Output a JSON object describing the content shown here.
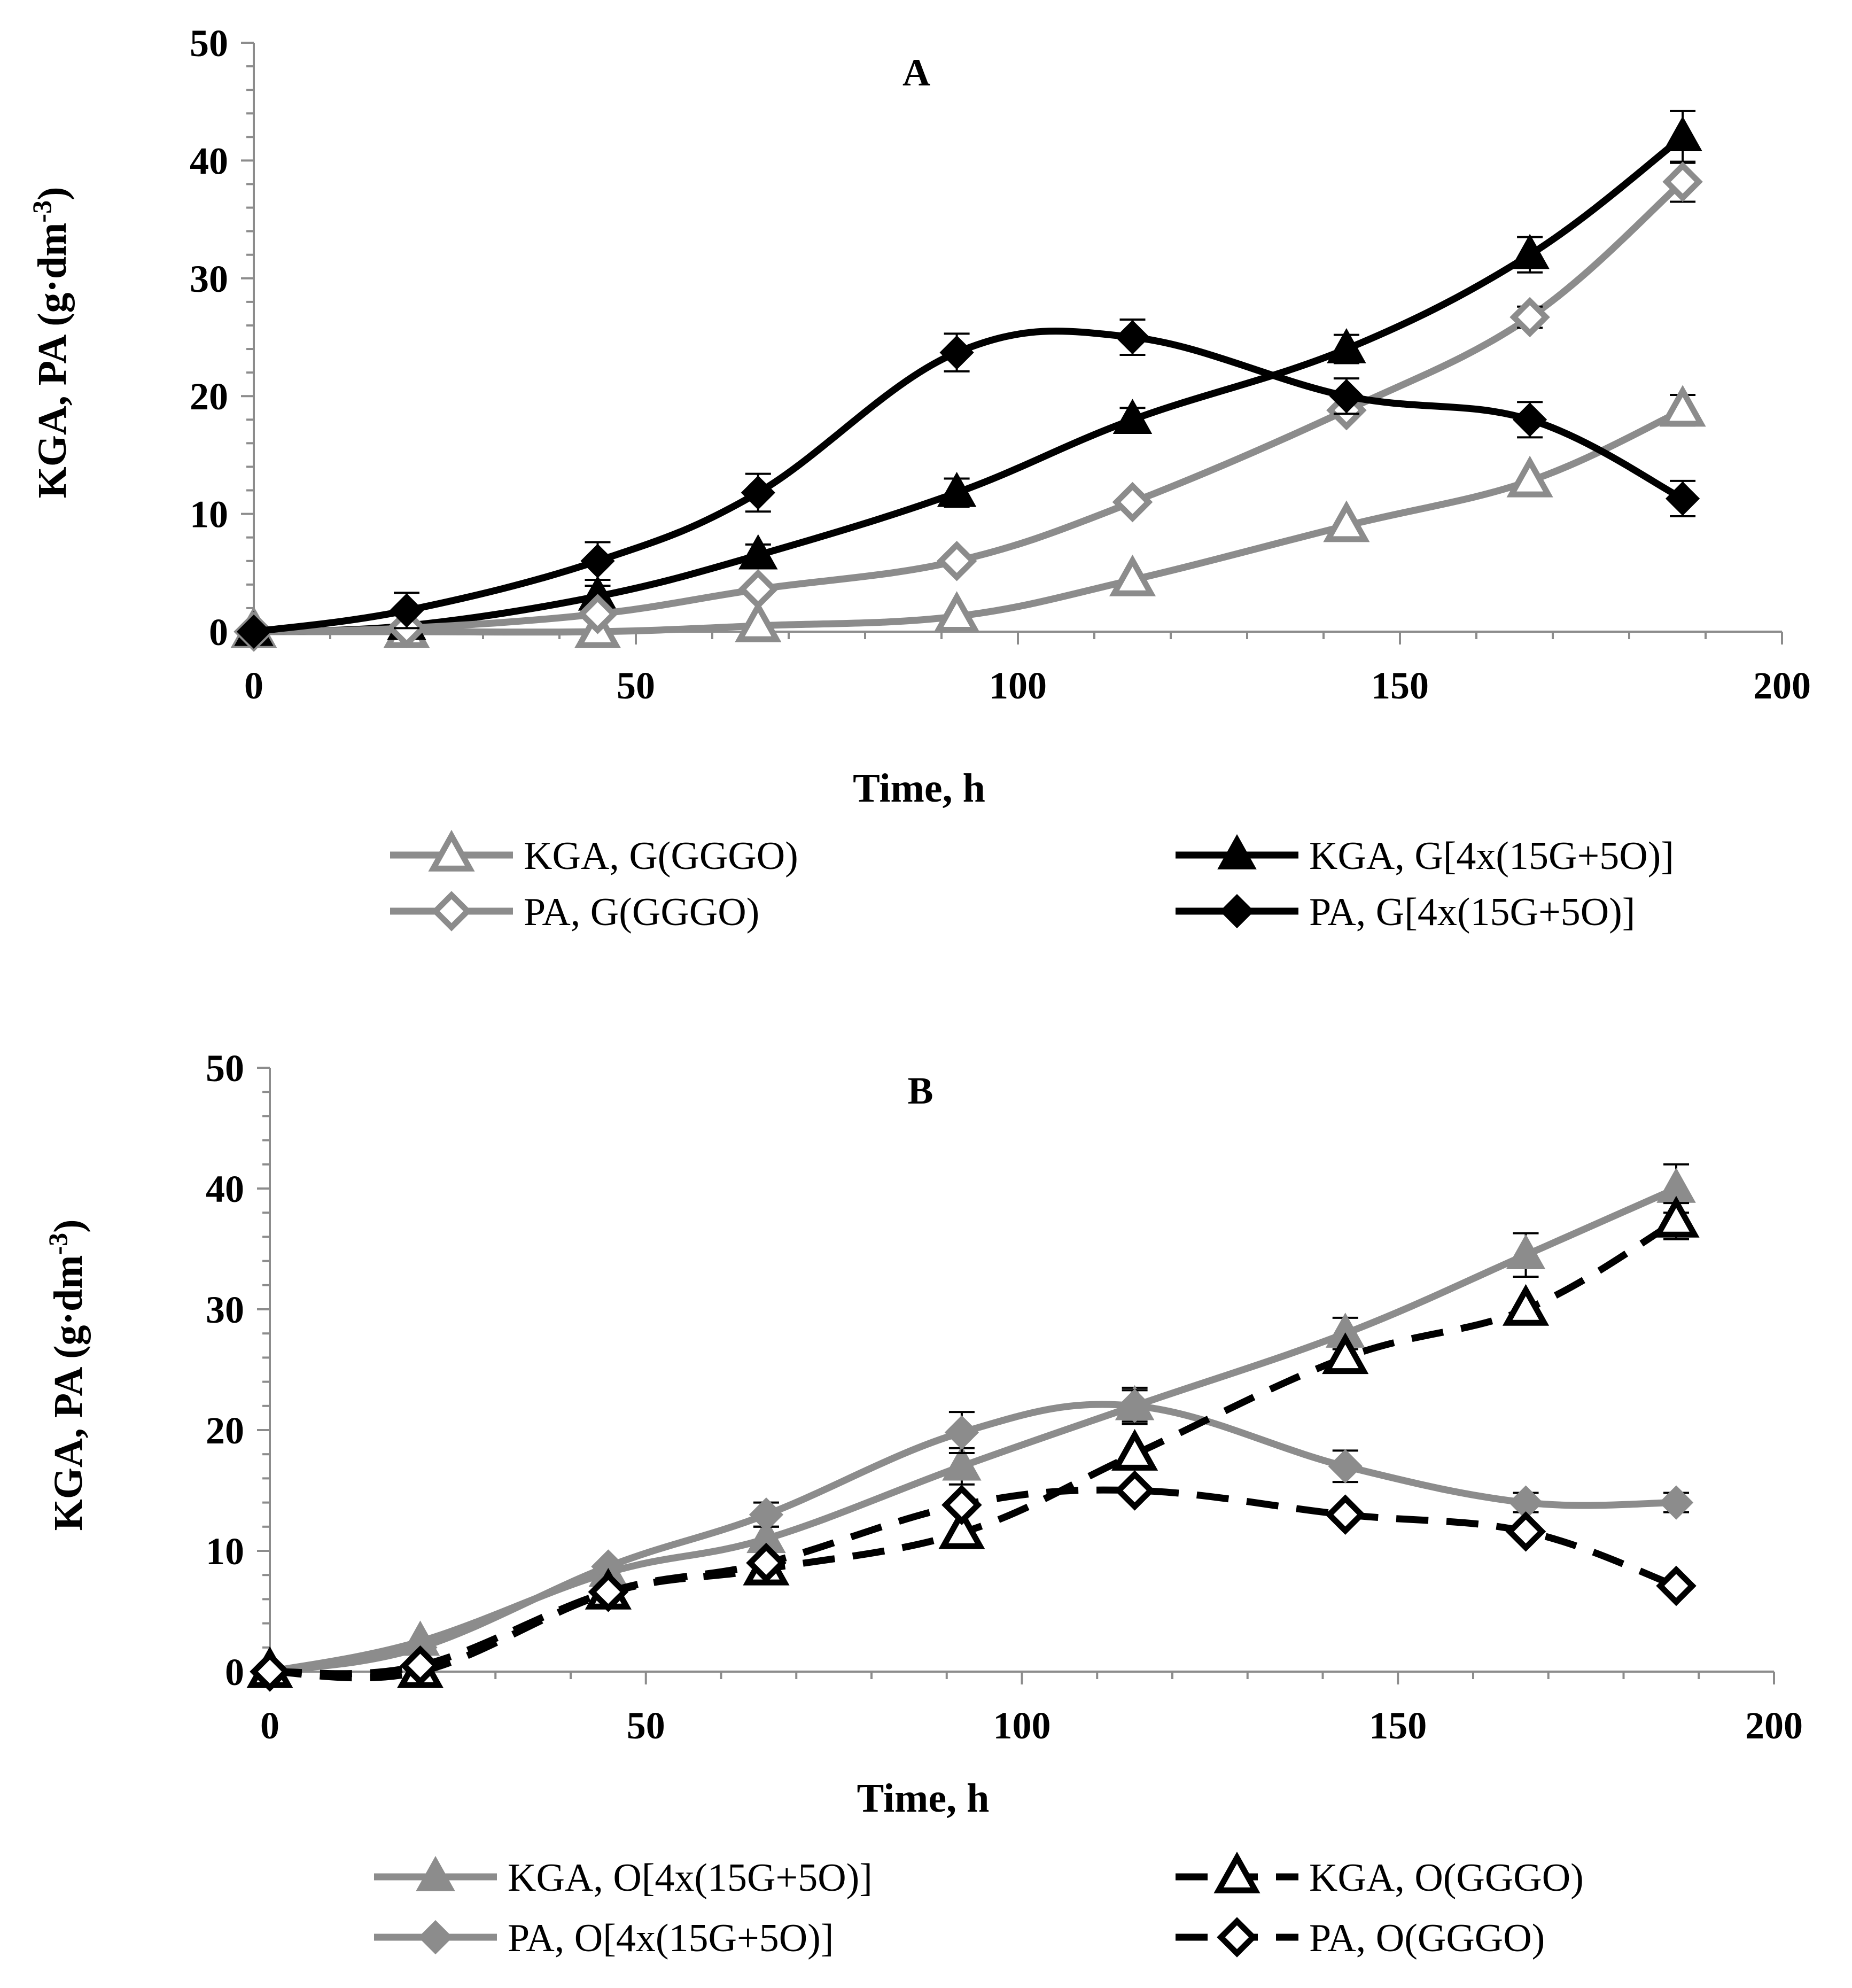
{
  "chart_data": [
    {
      "type": "line",
      "title": "A",
      "xlabel": "Time, h",
      "ylabel": "KGA, PA (g·dm",
      "ylabel_sup": "-3",
      "ylabel_close": ")",
      "xlim": [
        0,
        200
      ],
      "ylim": [
        0,
        50
      ],
      "xticks": [
        0,
        50,
        100,
        150,
        200
      ],
      "yticks": [
        0,
        10,
        20,
        30,
        40,
        50
      ],
      "grid": false,
      "legend_position": "bottom",
      "series": [
        {
          "name": "KGA, G(GGGO)",
          "color": "#8c8c8c",
          "marker": "triangle-open",
          "dash": false,
          "x": [
            0,
            20,
            45,
            66,
            92,
            115,
            143,
            167,
            187
          ],
          "y": [
            0,
            0,
            0,
            0.5,
            1.3,
            4.4,
            9,
            12.8,
            18.8
          ],
          "err": [
            0,
            0,
            0,
            0,
            0,
            0,
            0,
            0,
            1.3
          ]
        },
        {
          "name": "KGA, G[4x(15G+5O)]",
          "color": "#000000",
          "marker": "triangle-filled",
          "dash": false,
          "x": [
            0,
            20,
            45,
            66,
            92,
            115,
            143,
            167,
            187
          ],
          "y": [
            0,
            0.5,
            3,
            6.5,
            11.8,
            18,
            24,
            32,
            42
          ],
          "err": [
            0,
            0,
            0.9,
            0.9,
            1.2,
            1,
            1.2,
            1.5,
            2.2
          ]
        },
        {
          "name": "PA, G(GGGO)",
          "color": "#8c8c8c",
          "marker": "diamond-open",
          "dash": false,
          "x": [
            0,
            20,
            45,
            66,
            92,
            115,
            143,
            167,
            187
          ],
          "y": [
            0,
            0.3,
            1.5,
            3.6,
            6,
            11,
            18.8,
            26.7,
            38.2
          ],
          "err": [
            0,
            0,
            0,
            0,
            0,
            0,
            0,
            0.9,
            1.7
          ]
        },
        {
          "name": "PA, G[4x(15G+5O)]",
          "color": "#000000",
          "marker": "diamond-filled",
          "dash": false,
          "x": [
            0,
            20,
            45,
            66,
            92,
            115,
            143,
            167,
            187
          ],
          "y": [
            0,
            1.8,
            6,
            11.8,
            23.7,
            25,
            20,
            18,
            11.3
          ],
          "err": [
            0,
            1.5,
            1.6,
            1.6,
            1.6,
            1.5,
            1.5,
            1.5,
            1.5
          ]
        }
      ],
      "legend": [
        {
          "name": "KGA, G(GGGO)"
        },
        {
          "name": "KGA, G[4x(15G+5O)]"
        },
        {
          "name": "PA, G(GGGO)"
        },
        {
          "name": "PA, G[4x(15G+5O)]"
        }
      ]
    },
    {
      "type": "line",
      "title": "B",
      "xlabel": "Time, h",
      "ylabel": "KGA, PA (g·dm",
      "ylabel_sup": "-3",
      "ylabel_close": ")",
      "xlim": [
        0,
        200
      ],
      "ylim": [
        0,
        50
      ],
      "xticks": [
        0,
        50,
        100,
        150,
        200
      ],
      "yticks": [
        0,
        10,
        20,
        30,
        40,
        50
      ],
      "grid": false,
      "legend_position": "bottom",
      "series": [
        {
          "name": "KGA, O[4x(15G+5O)]",
          "color": "#8c8c8c",
          "marker": "triangle-filled",
          "dash": false,
          "x": [
            0,
            20,
            45,
            66,
            92,
            115,
            143,
            167,
            187
          ],
          "y": [
            0,
            2.5,
            8.2,
            11,
            17,
            22,
            28,
            34.5,
            40
          ],
          "err": [
            0,
            0,
            0,
            1,
            1.5,
            1.5,
            1.3,
            1.8,
            2
          ]
        },
        {
          "name": "PA, O[4x(15G+5O)]",
          "color": "#8c8c8c",
          "marker": "diamond-filled",
          "dash": false,
          "x": [
            0,
            20,
            45,
            66,
            92,
            115,
            143,
            167,
            187
          ],
          "y": [
            0,
            2,
            8.7,
            13,
            19.8,
            22,
            17,
            14,
            14
          ],
          "err": [
            0,
            0,
            0,
            1,
            1.7,
            1.3,
            1.3,
            0.8,
            0.8
          ]
        },
        {
          "name": "KGA, O(GGGO)",
          "color": "#000000",
          "marker": "triangle-open",
          "dash": true,
          "x": [
            0,
            20,
            45,
            66,
            92,
            115,
            143,
            167,
            187
          ],
          "y": [
            0,
            0,
            6.5,
            8.5,
            11.5,
            18,
            26,
            30,
            37.3
          ],
          "err": [
            0,
            0,
            0,
            0,
            0,
            0,
            0,
            0,
            1.5
          ]
        },
        {
          "name": "PA, O(GGGO)",
          "color": "#000000",
          "marker": "diamond-open",
          "dash": true,
          "x": [
            0,
            20,
            45,
            66,
            92,
            115,
            143,
            167,
            187
          ],
          "y": [
            0,
            0.5,
            6.6,
            9,
            13.8,
            15,
            13,
            11.6,
            7.1
          ],
          "err": [
            0,
            0,
            0,
            0,
            0,
            0,
            0,
            0,
            0
          ]
        }
      ],
      "legend": [
        {
          "name": "KGA, O[4x(15G+5O)]"
        },
        {
          "name": "KGA, O(GGGO)"
        },
        {
          "name": "PA, O[4x(15G+5O)]"
        },
        {
          "name": "PA, O(GGGO)"
        }
      ]
    }
  ]
}
